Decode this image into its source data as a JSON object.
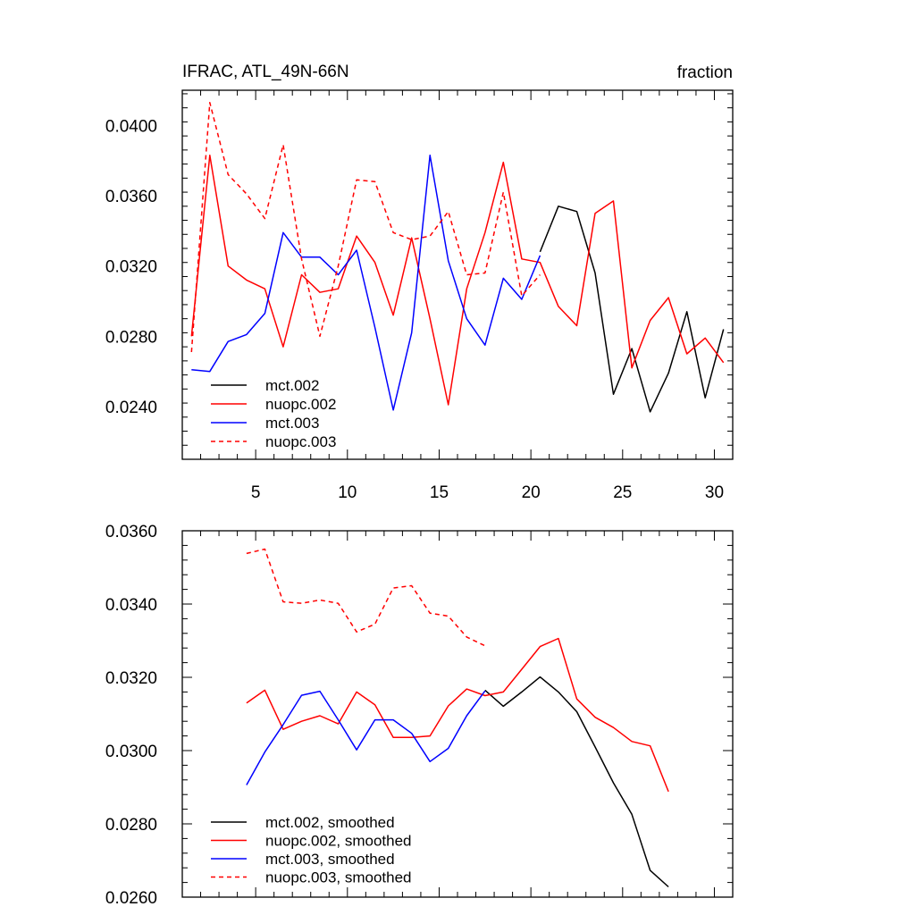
{
  "chart_data": [
    {
      "type": "line",
      "title": "IFRAC, ATL_49N-66N",
      "units_label": "fraction",
      "xlim": [
        1,
        31
      ],
      "ylim": [
        0.021,
        0.042
      ],
      "yticks": [
        0.024,
        0.028,
        0.032,
        0.036,
        0.04
      ],
      "ytick_labels": [
        "0.0240",
        "0.0280",
        "0.0320",
        "0.0360",
        "0.0400"
      ],
      "xticks": [
        5,
        10,
        15,
        20,
        25,
        30
      ],
      "xtick_labels": [
        "5",
        "10",
        "15",
        "20",
        "25",
        "30"
      ],
      "grid": false,
      "legend_position": "bottom-left",
      "series": [
        {
          "name": "mct.002",
          "color": "#000000",
          "dash": "solid",
          "x": [
            20.5,
            21.5,
            22.5,
            23.5,
            24.5,
            25.5,
            26.5,
            27.5,
            28.5,
            29.5,
            30.5
          ],
          "values": [
            0.0328,
            0.0354,
            0.0351,
            0.0316,
            0.0247,
            0.0273,
            0.0237,
            0.0259,
            0.0294,
            0.0245,
            0.0284
          ]
        },
        {
          "name": "nuopc.002",
          "color": "#ff0000",
          "dash": "solid",
          "x": [
            1.5,
            2.5,
            3.5,
            4.5,
            5.5,
            6.5,
            7.5,
            8.5,
            9.5,
            10.5,
            11.5,
            12.5,
            13.5,
            14.5,
            15.5,
            16.5,
            17.5,
            18.5,
            19.5,
            20.5,
            21.5,
            22.5,
            23.5,
            24.5,
            25.5,
            26.5,
            27.5,
            28.5,
            29.5,
            30.5
          ],
          "values": [
            0.028,
            0.0383,
            0.032,
            0.0312,
            0.0307,
            0.0274,
            0.0315,
            0.0305,
            0.0307,
            0.0337,
            0.0322,
            0.0292,
            0.0336,
            0.029,
            0.0241,
            0.0307,
            0.0339,
            0.0379,
            0.0324,
            0.0322,
            0.0297,
            0.0286,
            0.035,
            0.0357,
            0.0262,
            0.0289,
            0.0302,
            0.027,
            0.0279,
            0.0265
          ]
        },
        {
          "name": "mct.003",
          "color": "#0000ff",
          "dash": "solid",
          "x": [
            1.5,
            2.5,
            3.5,
            4.5,
            5.5,
            6.5,
            7.5,
            8.5,
            9.5,
            10.5,
            11.5,
            12.5,
            13.5,
            14.5,
            15.5,
            16.5,
            17.5,
            18.5,
            19.5,
            20.5
          ],
          "values": [
            0.0261,
            0.026,
            0.0277,
            0.0281,
            0.0293,
            0.0339,
            0.0325,
            0.0325,
            0.0315,
            0.0329,
            0.0285,
            0.0238,
            0.0282,
            0.0383,
            0.0323,
            0.029,
            0.0275,
            0.0313,
            0.0301,
            0.0326
          ]
        },
        {
          "name": "nuopc.003",
          "color": "#ff0000",
          "dash": "dashed",
          "x": [
            1.5,
            2.5,
            3.5,
            4.5,
            5.5,
            6.5,
            7.5,
            8.5,
            9.5,
            10.5,
            11.5,
            12.5,
            13.5,
            14.5,
            15.5,
            16.5,
            17.5,
            18.5,
            19.5,
            20.5
          ],
          "values": [
            0.0271,
            0.0413,
            0.0372,
            0.0361,
            0.0347,
            0.0389,
            0.0324,
            0.028,
            0.032,
            0.0369,
            0.0368,
            0.0339,
            0.0335,
            0.0337,
            0.0351,
            0.0315,
            0.0316,
            0.0362,
            0.0303,
            0.0315
          ]
        }
      ]
    },
    {
      "type": "line",
      "title": "",
      "xlim": [
        1,
        31
      ],
      "ylim": [
        0.026,
        0.036
      ],
      "yticks": [
        0.026,
        0.028,
        0.03,
        0.032,
        0.034,
        0.036
      ],
      "ytick_labels": [
        "0.0260",
        "0.0280",
        "0.0300",
        "0.0320",
        "0.0340",
        "0.0360"
      ],
      "xticks": [
        5,
        10,
        15,
        20,
        25,
        30
      ],
      "xtick_labels": [],
      "grid": false,
      "legend_position": "bottom-left",
      "series": [
        {
          "name": "mct.002, smoothed",
          "color": "#000000",
          "dash": "solid",
          "x": [
            17.5,
            18.5,
            19.5,
            20.5,
            21.5,
            22.5,
            23.5,
            24.5,
            25.5,
            26.5,
            27.5
          ],
          "values": [
            0.03165,
            0.03121,
            0.0316,
            0.03201,
            0.0316,
            0.03106,
            0.0301,
            0.02912,
            0.02826,
            0.02673,
            0.02628
          ]
        },
        {
          "name": "nuopc.002, smoothed",
          "color": "#ff0000",
          "dash": "solid",
          "x": [
            4.5,
            5.5,
            6.5,
            7.5,
            8.5,
            9.5,
            10.5,
            11.5,
            12.5,
            13.5,
            14.5,
            15.5,
            16.5,
            17.5,
            18.5,
            19.5,
            20.5,
            21.5,
            22.5,
            23.5,
            24.5,
            25.5,
            26.5,
            27.5
          ],
          "values": [
            0.0313,
            0.03165,
            0.03058,
            0.0308,
            0.03095,
            0.03073,
            0.0316,
            0.03125,
            0.03036,
            0.03036,
            0.0304,
            0.03122,
            0.03168,
            0.0315,
            0.0316,
            0.03222,
            0.03284,
            0.03306,
            0.03141,
            0.03091,
            0.03063,
            0.03025,
            0.03013,
            0.02888
          ]
        },
        {
          "name": "mct.003, smoothed",
          "color": "#0000ff",
          "dash": "solid",
          "x": [
            4.5,
            5.5,
            6.5,
            7.5,
            8.5,
            9.5,
            10.5,
            11.5,
            12.5,
            13.5,
            14.5,
            15.5,
            16.5,
            17.5
          ],
          "values": [
            0.02906,
            0.02996,
            0.03071,
            0.03151,
            0.03162,
            0.03084,
            0.03002,
            0.03084,
            0.03084,
            0.03047,
            0.0297,
            0.03006,
            0.03095,
            0.03163
          ]
        },
        {
          "name": "nuopc.003, smoothed",
          "color": "#ff0000",
          "dash": "dashed",
          "x": [
            4.5,
            5.5,
            6.5,
            7.5,
            8.5,
            9.5,
            10.5,
            11.5,
            12.5,
            13.5,
            14.5,
            15.5,
            16.5,
            17.5
          ],
          "values": [
            0.03538,
            0.0355,
            0.03406,
            0.03402,
            0.03411,
            0.03402,
            0.03324,
            0.03345,
            0.03444,
            0.0345,
            0.03375,
            0.03367,
            0.0331,
            0.03286
          ]
        }
      ]
    }
  ]
}
